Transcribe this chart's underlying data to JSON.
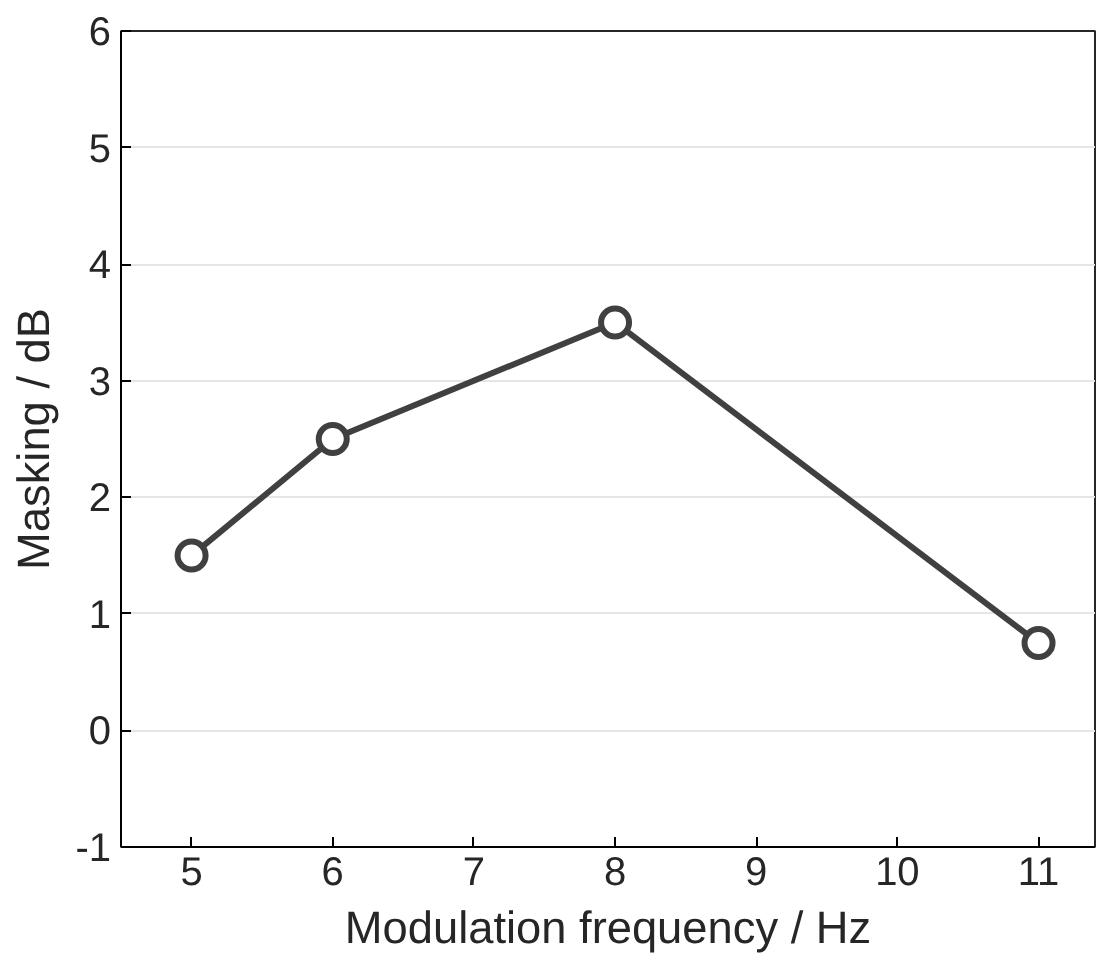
{
  "chart_data": {
    "type": "line",
    "xlabel": "Modulation frequency / Hz",
    "ylabel": "Masking / dB",
    "x": [
      5,
      6,
      8,
      11
    ],
    "series": [
      {
        "color": "#404040",
        "values": [
          1.5,
          2.5,
          3.5,
          0.75
        ]
      }
    ],
    "xlim": [
      4.5,
      11.4
    ],
    "xticks": [
      5,
      6,
      7,
      8,
      9,
      10,
      11
    ],
    "ylim": [
      -1,
      6
    ],
    "yticks": [
      -1,
      0,
      1,
      2,
      3,
      4,
      5,
      6
    ],
    "grid": "y",
    "marker": "circle",
    "line_style": "solid"
  }
}
